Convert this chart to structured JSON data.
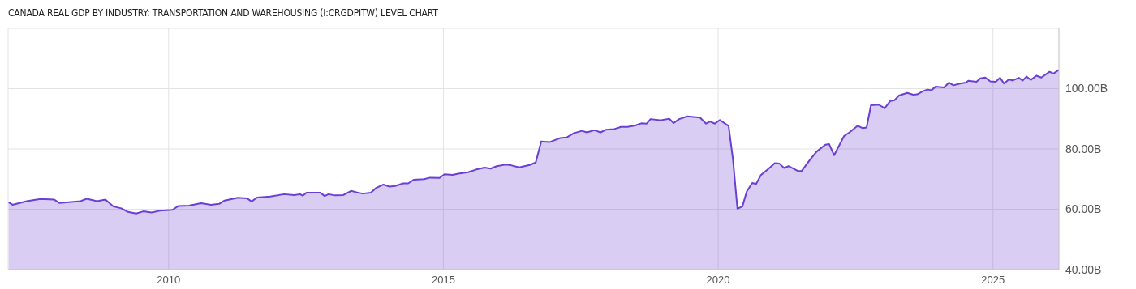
{
  "chart_data": {
    "type": "area",
    "title": "CANADA REAL GDP BY INDUSTRY: TRANSPORTATION AND WAREHOUSING (I:CRGDPITW) LEVEL CHART",
    "x": [
      2007.09,
      2007.16,
      2007.42,
      2007.67,
      2007.92,
      2008.01,
      2008.4,
      2008.51,
      2008.7,
      2008.85,
      2009.0,
      2009.14,
      2009.26,
      2009.41,
      2009.54,
      2009.69,
      2009.84,
      2010.07,
      2010.18,
      2010.37,
      2010.59,
      2010.77,
      2010.92,
      2011.02,
      2011.26,
      2011.43,
      2011.51,
      2011.61,
      2011.85,
      2012.1,
      2012.29,
      2012.39,
      2012.44,
      2012.51,
      2012.76,
      2012.84,
      2012.91,
      2013.03,
      2013.18,
      2013.32,
      2013.43,
      2013.53,
      2013.68,
      2013.77,
      2013.91,
      2014.02,
      2014.12,
      2014.27,
      2014.36,
      2014.46,
      2014.65,
      2014.76,
      2014.93,
      2015.02,
      2015.17,
      2015.27,
      2015.45,
      2015.6,
      2015.75,
      2015.86,
      2015.97,
      2016.13,
      2016.23,
      2016.38,
      2016.57,
      2016.68,
      2016.78,
      2016.94,
      2017.12,
      2017.24,
      2017.37,
      2017.52,
      2017.61,
      2017.75,
      2017.86,
      2017.96,
      2018.11,
      2018.23,
      2018.35,
      2018.49,
      2018.6,
      2018.7,
      2018.77,
      2018.94,
      2019.11,
      2019.19,
      2019.29,
      2019.44,
      2019.67,
      2019.78,
      2019.85,
      2019.94,
      2020.03,
      2020.19,
      2020.27,
      2020.35,
      2020.44,
      2020.52,
      2020.62,
      2020.69,
      2020.78,
      2020.92,
      2021.03,
      2021.11,
      2021.2,
      2021.28,
      2021.45,
      2021.52,
      2021.67,
      2021.79,
      2021.95,
      2022.02,
      2022.11,
      2022.29,
      2022.39,
      2022.54,
      2022.63,
      2022.7,
      2022.78,
      2022.92,
      2023.03,
      2023.13,
      2023.21,
      2023.29,
      2023.44,
      2023.55,
      2023.62,
      2023.74,
      2023.81,
      2023.88,
      2023.96,
      2024.11,
      2024.2,
      2024.28,
      2024.4,
      2024.51,
      2024.55,
      2024.7,
      2024.77,
      2024.86,
      2024.95,
      2025.05,
      2025.13,
      2025.2,
      2025.29,
      2025.36,
      2025.47,
      2025.54,
      2025.61,
      2025.69,
      2025.79,
      2025.88,
      2026.03,
      2026.1,
      2026.2
    ],
    "series": [
      {
        "color": "#6b3fd4",
        "values": [
          62.3,
          61.5,
          62.7,
          63.4,
          63.2,
          62.1,
          62.7,
          63.5,
          62.7,
          63.2,
          60.9,
          60.3,
          59.1,
          58.6,
          59.3,
          58.9,
          59.5,
          59.8,
          61.1,
          61.2,
          62.0,
          61.5,
          61.8,
          62.9,
          63.8,
          63.6,
          62.6,
          63.9,
          64.2,
          65.0,
          64.7,
          65.0,
          64.5,
          65.5,
          65.5,
          64.4,
          65.0,
          64.6,
          64.7,
          66.1,
          65.6,
          65.2,
          65.5,
          67.0,
          68.2,
          67.5,
          67.7,
          68.6,
          68.6,
          69.8,
          70.0,
          70.5,
          70.4,
          71.6,
          71.4,
          71.8,
          72.3,
          73.2,
          73.8,
          73.5,
          74.3,
          74.8,
          74.6,
          73.9,
          74.7,
          75.5,
          82.5,
          82.3,
          83.6,
          83.8,
          85.2,
          86.0,
          85.5,
          86.2,
          85.5,
          86.4,
          86.6,
          87.3,
          87.3,
          87.8,
          88.5,
          88.4,
          89.9,
          89.5,
          90.0,
          88.6,
          89.9,
          90.8,
          90.4,
          88.4,
          89.1,
          88.4,
          89.6,
          87.6,
          76.4,
          60.2,
          60.9,
          65.9,
          68.7,
          68.4,
          71.4,
          73.5,
          75.3,
          75.2,
          73.7,
          74.3,
          72.7,
          72.7,
          76.4,
          79.1,
          81.4,
          81.6,
          77.9,
          84.3,
          85.5,
          87.7,
          86.9,
          87.1,
          94.5,
          94.7,
          93.5,
          95.9,
          96.2,
          97.7,
          98.6,
          98.0,
          98.1,
          99.3,
          99.7,
          99.5,
          100.7,
          100.4,
          102.0,
          101.1,
          101.7,
          102.0,
          102.6,
          102.3,
          103.4,
          103.7,
          102.4,
          102.3,
          103.6,
          101.7,
          103.1,
          102.7,
          103.6,
          102.7,
          104.0,
          102.9,
          104.3,
          103.7,
          105.6,
          105.0,
          106.2
        ]
      }
    ],
    "xlim": [
      2007.08,
      2026.2
    ],
    "xticks": [
      2010,
      2015,
      2020,
      2025
    ],
    "ylim": [
      40,
      120
    ],
    "yticks": [
      {
        "value": 40,
        "label": "40.00B"
      },
      {
        "value": 60,
        "label": "60.00B"
      },
      {
        "value": 80,
        "label": "80.00B"
      },
      {
        "value": 100,
        "label": "100.00B"
      }
    ],
    "grid": true
  }
}
